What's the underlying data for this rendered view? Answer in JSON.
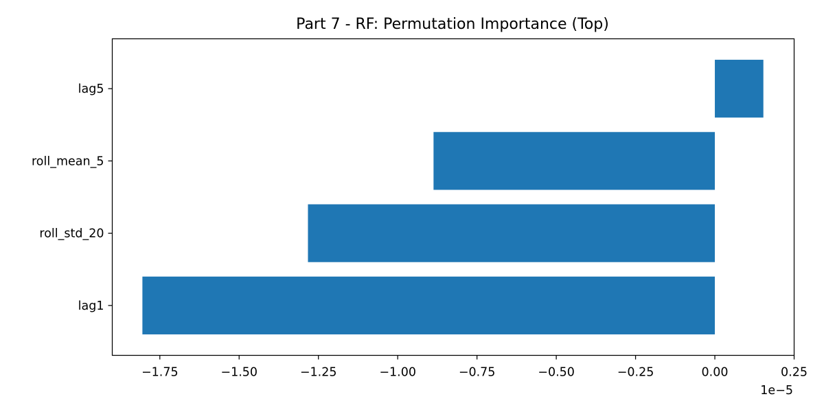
{
  "chart_data": {
    "type": "bar",
    "orientation": "horizontal",
    "title": "Part 7 - RF: Permutation Importance (Top)",
    "xlabel": "",
    "ylabel": "",
    "x_offset_text": "1e−5",
    "x_scale_factor": 1e-05,
    "categories": [
      "lag1",
      "roll_std_20",
      "roll_mean_5",
      "lag5"
    ],
    "values": [
      -1.805,
      -1.283,
      -0.887,
      0.153
    ],
    "xlim": [
      -1.9,
      0.25
    ],
    "xticks": [
      -1.75,
      -1.5,
      -1.25,
      -1.0,
      -0.75,
      -0.5,
      -0.25,
      0.0,
      0.25
    ],
    "xtick_labels": [
      "−1.75",
      "−1.50",
      "−1.25",
      "−1.00",
      "−0.75",
      "−0.50",
      "−0.25",
      "0.00",
      "0.25"
    ],
    "bar_color": "#1f77b4",
    "grid": false,
    "legend": "none"
  }
}
